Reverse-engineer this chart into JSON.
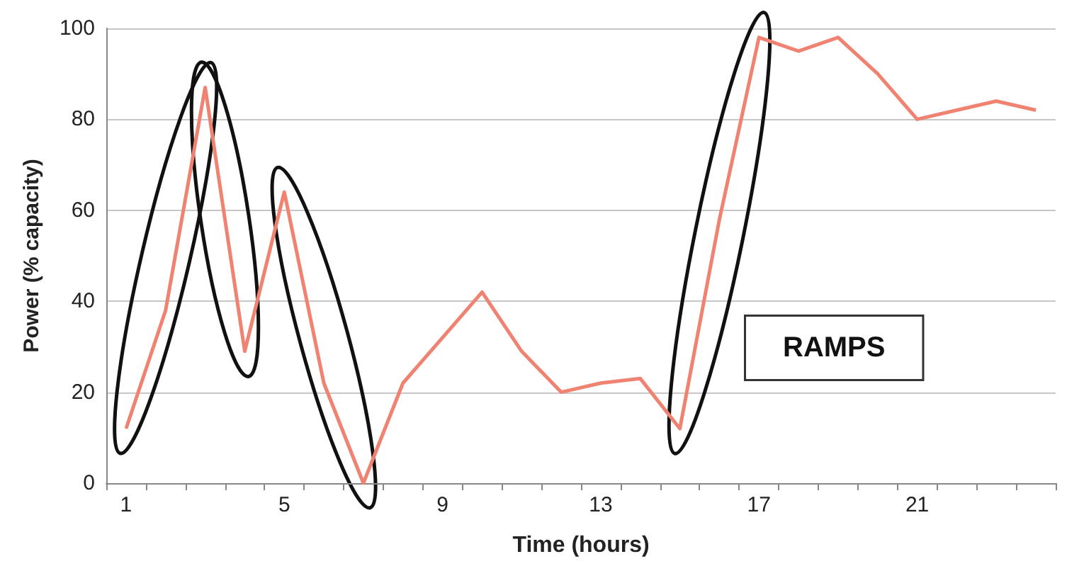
{
  "chart_data": {
    "type": "line",
    "xlabel": "Time (hours)",
    "ylabel": "Power (% capacity)",
    "categories": [
      "1",
      null,
      null,
      null,
      "5",
      null,
      null,
      null,
      "9",
      null,
      null,
      null,
      "13",
      null,
      null,
      null,
      "17",
      null,
      null,
      null,
      "21",
      null,
      null,
      null
    ],
    "series": [
      {
        "color": "#f08272",
        "values": [
          12,
          38,
          87,
          29,
          64,
          22,
          0,
          22,
          32,
          42,
          29,
          20,
          22,
          23,
          12,
          58,
          98,
          95,
          98,
          90,
          80,
          82,
          84,
          82
        ]
      }
    ],
    "ylim": [
      0,
      100
    ],
    "yticks": [
      0,
      20,
      40,
      60,
      80,
      100
    ],
    "grid": "y",
    "marker": "none",
    "annotations": [
      "RAMPS"
    ]
  }
}
